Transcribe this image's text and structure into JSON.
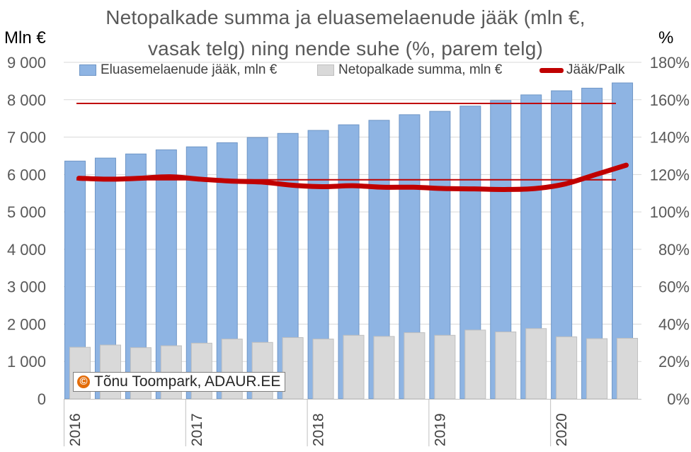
{
  "chart_data": {
    "type": "bar",
    "title_lines": [
      "Netopalkade summa ja eluasemelaenude jääk (mln €,",
      "vasak telg) ning nende suhe (%, parem telg)"
    ],
    "left_axis_unit": "Mln €",
    "right_axis_unit": "%",
    "ylim_left": [
      0,
      9000
    ],
    "ylim_right": [
      0,
      180
    ],
    "yticks_left": [
      "0",
      "1 000",
      "2 000",
      "3 000",
      "4 000",
      "5 000",
      "6 000",
      "7 000",
      "8 000",
      "9 000"
    ],
    "yticks_right": [
      "0%",
      "20%",
      "40%",
      "60%",
      "80%",
      "100%",
      "120%",
      "140%",
      "160%",
      "180%"
    ],
    "x_year_labels": [
      "2016",
      "2017",
      "2018",
      "2019",
      "2020"
    ],
    "x_period": "quarterly, 2016 Q1 – 2020 Q3",
    "grid": "horizontal",
    "legend_position": "top",
    "series": [
      {
        "name": "Eluasemelaenude jääk, mln €",
        "kind": "bar",
        "axis": "left",
        "color": "#8eb4e3",
        "values": [
          6360,
          6440,
          6550,
          6660,
          6740,
          6850,
          6990,
          7100,
          7180,
          7330,
          7450,
          7600,
          7690,
          7830,
          7980,
          8130,
          8240,
          8310,
          8450
        ]
      },
      {
        "name": "Netopalkade summa, mln €",
        "kind": "bar",
        "axis": "left",
        "color": "#d9d9d9",
        "values": [
          1380,
          1440,
          1370,
          1420,
          1490,
          1600,
          1510,
          1640,
          1600,
          1700,
          1670,
          1770,
          1700,
          1840,
          1790,
          1880,
          1660,
          1610,
          1620
        ]
      },
      {
        "name": "Jääk/Palk",
        "kind": "line",
        "axis": "right",
        "color": "#c00000",
        "values": [
          118,
          117.5,
          118,
          118.8,
          117.5,
          116.5,
          116,
          114.3,
          113.5,
          114,
          113.2,
          113.2,
          112.5,
          112.3,
          112,
          112.5,
          115,
          120,
          125
        ]
      }
    ],
    "reference_lines": [
      {
        "axis": "right",
        "value": 158,
        "color": "#c00000"
      },
      {
        "axis": "right",
        "value": 117.2,
        "color": "#c00000"
      }
    ],
    "watermark_text": "Tõnu Toompark, ADAUR.EE",
    "watermark_symbol": "©"
  }
}
